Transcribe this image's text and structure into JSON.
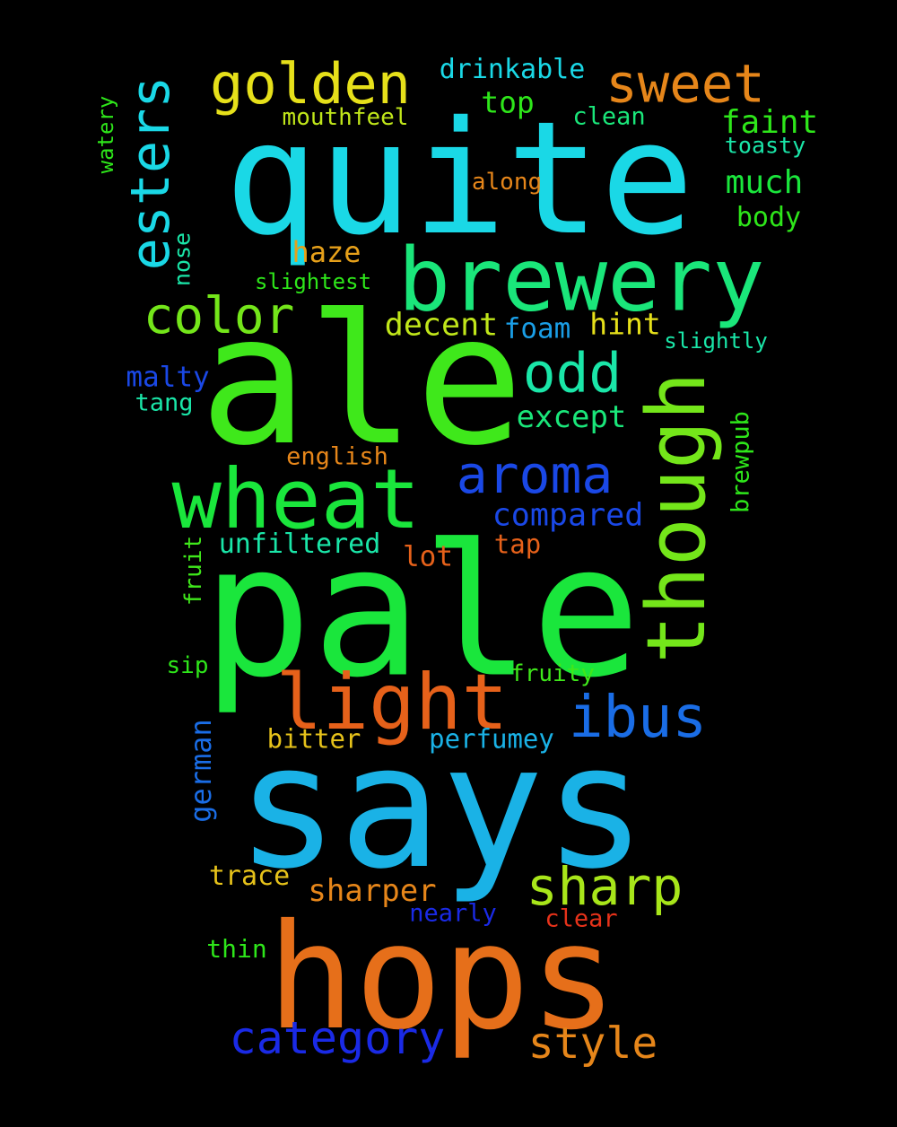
{
  "words": [
    {
      "text": "quite",
      "color": "#1ad8e6"
    },
    {
      "text": "ale",
      "color": "#3fe81b"
    },
    {
      "text": "pale",
      "color": "#1ae63c"
    },
    {
      "text": "says",
      "color": "#1ab2e6"
    },
    {
      "text": "hops",
      "color": "#e66f1a"
    },
    {
      "text": "brewery",
      "color": "#1ae67a"
    },
    {
      "text": "wheat",
      "color": "#1ae63c"
    },
    {
      "text": "light",
      "color": "#e6611a"
    },
    {
      "text": "though",
      "color": "#74e61a"
    },
    {
      "text": "esters",
      "color": "#1ad8e6"
    },
    {
      "text": "golden",
      "color": "#e6e01a"
    },
    {
      "text": "sweet",
      "color": "#e6861a"
    },
    {
      "text": "aroma",
      "color": "#1a48e6"
    },
    {
      "text": "ibus",
      "color": "#1a6de6"
    },
    {
      "text": "sharp",
      "color": "#a8e61a"
    },
    {
      "text": "category",
      "color": "#1a2ae6"
    },
    {
      "text": "style",
      "color": "#e6861a"
    },
    {
      "text": "color",
      "color": "#74e61a"
    },
    {
      "text": "odd",
      "color": "#1ae6a8"
    },
    {
      "text": "drinkable",
      "color": "#1ad8e6"
    },
    {
      "text": "top",
      "color": "#2ee61a"
    },
    {
      "text": "faint",
      "color": "#2ee61a"
    },
    {
      "text": "much",
      "color": "#1ae63c"
    },
    {
      "text": "body",
      "color": "#2ee61a"
    },
    {
      "text": "mouthfeel",
      "color": "#c0e61a"
    },
    {
      "text": "clean",
      "color": "#1ae67a"
    },
    {
      "text": "toasty",
      "color": "#1ae6a8"
    },
    {
      "text": "watery",
      "color": "#2ee61a"
    },
    {
      "text": "along",
      "color": "#e6861a"
    },
    {
      "text": "haze",
      "color": "#e6a01a"
    },
    {
      "text": "nose",
      "color": "#1ae6a8"
    },
    {
      "text": "slightest",
      "color": "#2ee61a"
    },
    {
      "text": "decent",
      "color": "#c0e61a"
    },
    {
      "text": "foam",
      "color": "#1a9ee6"
    },
    {
      "text": "hint",
      "color": "#e6e01a"
    },
    {
      "text": "slightly",
      "color": "#1ae6a8"
    },
    {
      "text": "malty",
      "color": "#1a48e6"
    },
    {
      "text": "tang",
      "color": "#1ae6a8"
    },
    {
      "text": "except",
      "color": "#1ae67a"
    },
    {
      "text": "english",
      "color": "#e6861a"
    },
    {
      "text": "brewpub",
      "color": "#2ee61a"
    },
    {
      "text": "compared",
      "color": "#1a48e6"
    },
    {
      "text": "unfiltered",
      "color": "#1ae6a8"
    },
    {
      "text": "lot",
      "color": "#e6611a"
    },
    {
      "text": "tap",
      "color": "#e6611a"
    },
    {
      "text": "fruit",
      "color": "#3fe81b"
    },
    {
      "text": "sip",
      "color": "#2ee61a"
    },
    {
      "text": "fruity",
      "color": "#3fe81b"
    },
    {
      "text": "bitter",
      "color": "#e6c21a"
    },
    {
      "text": "perfumey",
      "color": "#1ab2e6"
    },
    {
      "text": "german",
      "color": "#1a6de6"
    },
    {
      "text": "trace",
      "color": "#e6c21a"
    },
    {
      "text": "sharper",
      "color": "#e6861a"
    },
    {
      "text": "nearly",
      "color": "#1a2ae6"
    },
    {
      "text": "clear",
      "color": "#e6321a"
    },
    {
      "text": "thin",
      "color": "#2ee61a"
    }
  ]
}
